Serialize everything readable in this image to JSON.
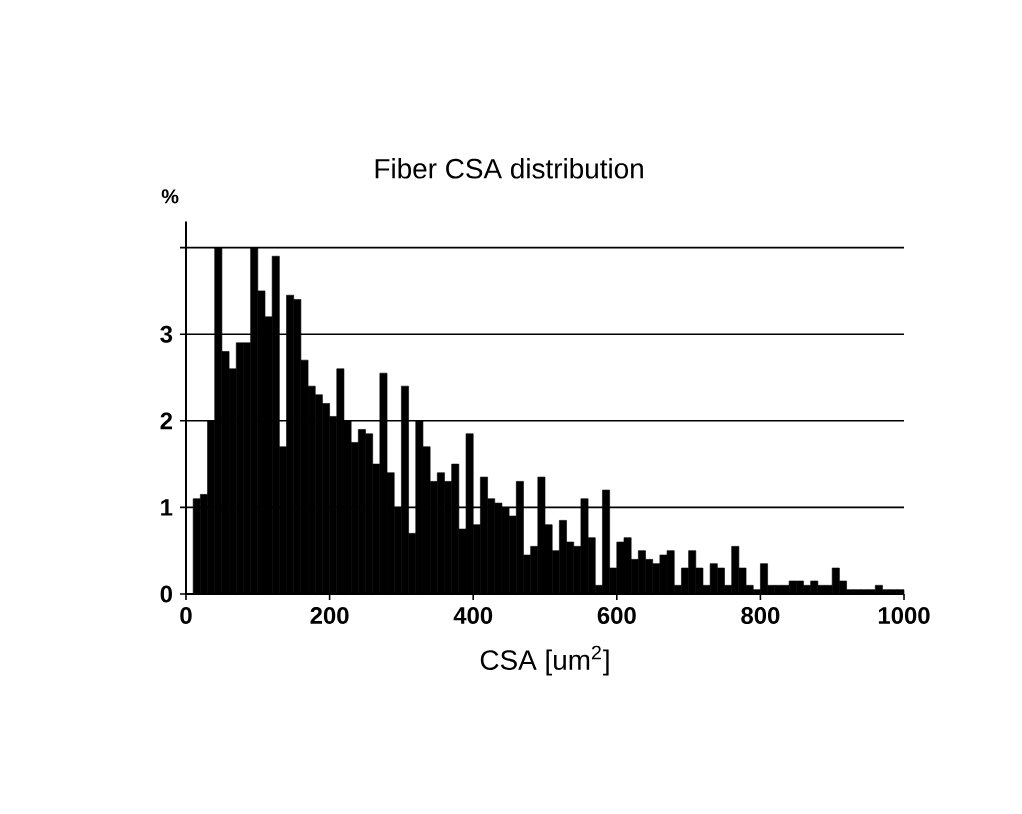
{
  "chart_data": {
    "type": "histogram",
    "title": "Fiber CSA distribution",
    "xlabel": "CSA [um$^{2}$]",
    "ylabel": "%",
    "bins": [
      10,
      20,
      30,
      40,
      50,
      60,
      70,
      80,
      90,
      100,
      110,
      120,
      130,
      140,
      150,
      160,
      170,
      180,
      190,
      200,
      210,
      220,
      230,
      240,
      250,
      260,
      270,
      280,
      290,
      300,
      310,
      320,
      330,
      340,
      350,
      360,
      370,
      380,
      390,
      400,
      410,
      420,
      430,
      440,
      450,
      460,
      470,
      480,
      490,
      500,
      510,
      520,
      530,
      540,
      550,
      560,
      570,
      580,
      590,
      600,
      610,
      620,
      630,
      640,
      650,
      660,
      670,
      680,
      690,
      700,
      710,
      720,
      730,
      740,
      750,
      760,
      770,
      780,
      790,
      800,
      810,
      820,
      830,
      840,
      850,
      860,
      870,
      880,
      890,
      900,
      910,
      920,
      930,
      940,
      950,
      960,
      970,
      980,
      990,
      1000
    ],
    "values": [
      1.1,
      1.15,
      2.0,
      4.0,
      2.8,
      2.6,
      2.9,
      2.9,
      4.0,
      3.5,
      3.2,
      3.9,
      1.7,
      3.45,
      3.4,
      2.7,
      2.4,
      2.3,
      2.2,
      2.05,
      2.6,
      2.0,
      1.75,
      1.9,
      1.85,
      1.5,
      2.55,
      1.4,
      1.0,
      2.4,
      0.7,
      2.0,
      1.7,
      1.3,
      1.4,
      1.3,
      1.5,
      0.75,
      1.85,
      0.8,
      1.35,
      1.1,
      1.05,
      1.0,
      0.9,
      1.3,
      0.45,
      0.55,
      1.35,
      0.8,
      0.5,
      0.85,
      0.6,
      0.55,
      1.1,
      0.65,
      0.1,
      1.2,
      0.3,
      0.6,
      0.65,
      0.4,
      0.5,
      0.4,
      0.35,
      0.45,
      0.5,
      0.1,
      0.3,
      0.5,
      0.3,
      0.1,
      0.35,
      0.3,
      0.1,
      0.55,
      0.3,
      0.1,
      0.05,
      0.35,
      0.1,
      0.1,
      0.1,
      0.15,
      0.15,
      0.1,
      0.15,
      0.1,
      0.1,
      0.3,
      0.15,
      0.05,
      0.05,
      0.05,
      0.05,
      0.1,
      0.05,
      0.05,
      0.05
    ],
    "color": "#000000",
    "xlim": [
      0,
      1000
    ],
    "ylim": [
      0,
      4.3
    ],
    "xticks": [
      0,
      200,
      400,
      600,
      800,
      1000
    ],
    "yticks": [
      0,
      1,
      2,
      3,
      {
        "value": 4,
        "label": null
      }
    ],
    "grid": "y"
  }
}
